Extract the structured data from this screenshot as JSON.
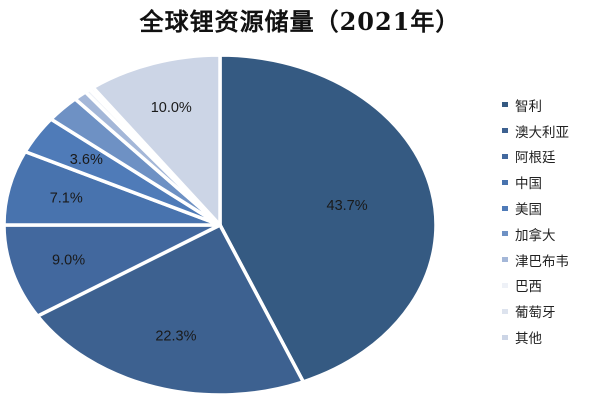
{
  "chart_data": {
    "type": "pie",
    "title": "全球锂资源储量（2021年）",
    "categories": [
      "智利",
      "澳大利亚",
      "阿根廷",
      "中国",
      "美国",
      "加拿大",
      "津巴布韦",
      "巴西",
      "葡萄牙",
      "其他"
    ],
    "values": [
      43.7,
      22.3,
      9.0,
      7.1,
      3.6,
      2.6,
      1.0,
      0.4,
      0.3,
      10.0
    ],
    "data_labels": [
      "43.7%",
      "22.3%",
      "9.0%",
      "7.1%",
      "3.6%",
      "",
      "",
      "",
      "",
      "10.0%"
    ],
    "colors": [
      "#355A82",
      "#3D6190",
      "#42689E",
      "#4873AE",
      "#4F7BB8",
      "#6E91C4",
      "#A4B7D8",
      "#EEF1F7",
      "#DDE3EE",
      "#CCD5E6"
    ],
    "legend_position": "right",
    "start_angle": "12 o'clock, clockwise"
  },
  "title": "全球锂资源储量（2021年）"
}
